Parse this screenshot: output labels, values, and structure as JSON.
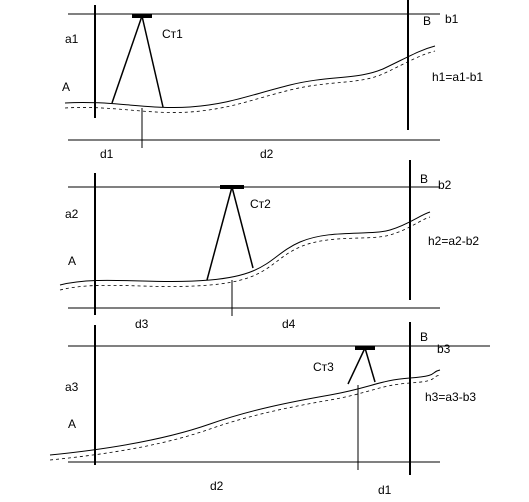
{
  "panels": [
    {
      "staff_a_reading": "a1",
      "point_a": "A",
      "station": "Ст1",
      "point_b": "B",
      "staff_b_reading": "b1",
      "formula": "h1=a1-b1",
      "distances": [
        "d1",
        "d2"
      ]
    },
    {
      "staff_a_reading": "a2",
      "point_a": "A",
      "station": "Ст2",
      "point_b": "B",
      "staff_b_reading": "b2",
      "formula": "h2=a2-b2",
      "distances": [
        "d3",
        "d4"
      ]
    },
    {
      "staff_a_reading": "a3",
      "point_a": "A",
      "station": "Ст3",
      "point_b": "B",
      "staff_b_reading": "b3",
      "formula": "h3=a3-b3",
      "distances": [
        "d2",
        "d1"
      ]
    }
  ]
}
